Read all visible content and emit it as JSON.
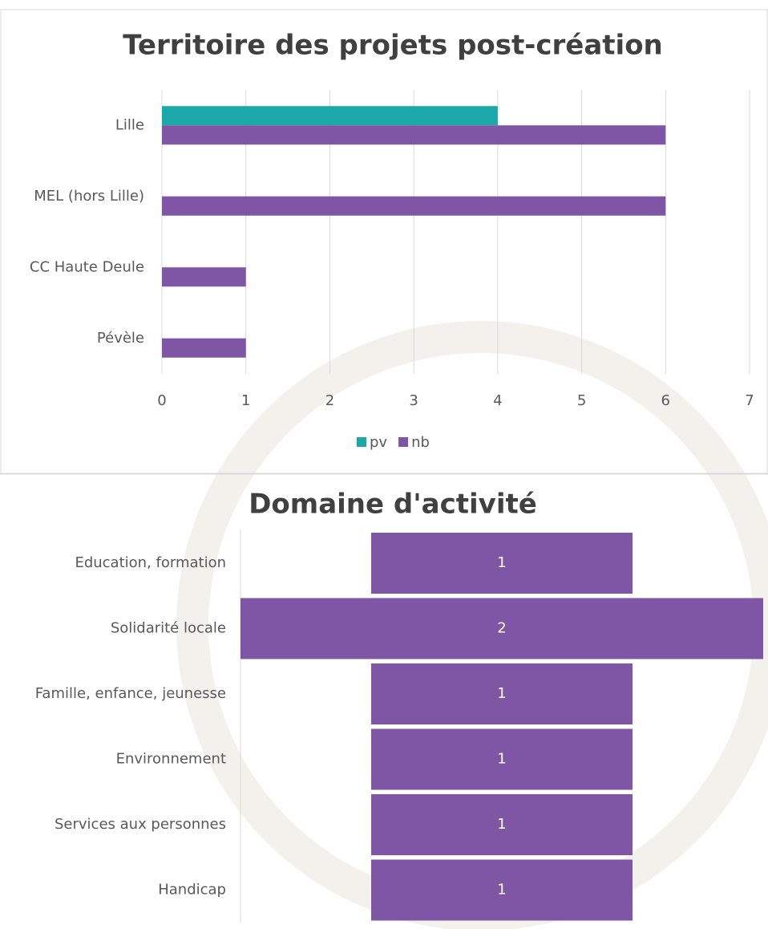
{
  "chart_data": [
    {
      "type": "bar",
      "orientation": "horizontal",
      "title": "Territoire des projets post-création",
      "categories": [
        "Lille",
        "MEL (hors Lille)",
        "CC Haute Deule",
        "Pévèle"
      ],
      "series": [
        {
          "name": "pv",
          "color": "#1ba8a8",
          "values": [
            4,
            null,
            null,
            null
          ]
        },
        {
          "name": "nb",
          "color": "#7f56a6",
          "values": [
            6,
            6,
            1,
            1
          ]
        }
      ],
      "xlim": [
        0,
        7
      ],
      "xticks": [
        0,
        1,
        2,
        3,
        4,
        5,
        6,
        7
      ],
      "grid": true,
      "legend": "bottom"
    },
    {
      "type": "funnel",
      "title": "Domaine d'activité",
      "categories": [
        "Education, formation",
        "Solidarité locale",
        "Famille, enfance, jeunesse",
        "Environnement",
        "Services aux personnes",
        "Handicap"
      ],
      "values": [
        1,
        2,
        1,
        1,
        1,
        1
      ],
      "color": "#7f56a6"
    }
  ]
}
